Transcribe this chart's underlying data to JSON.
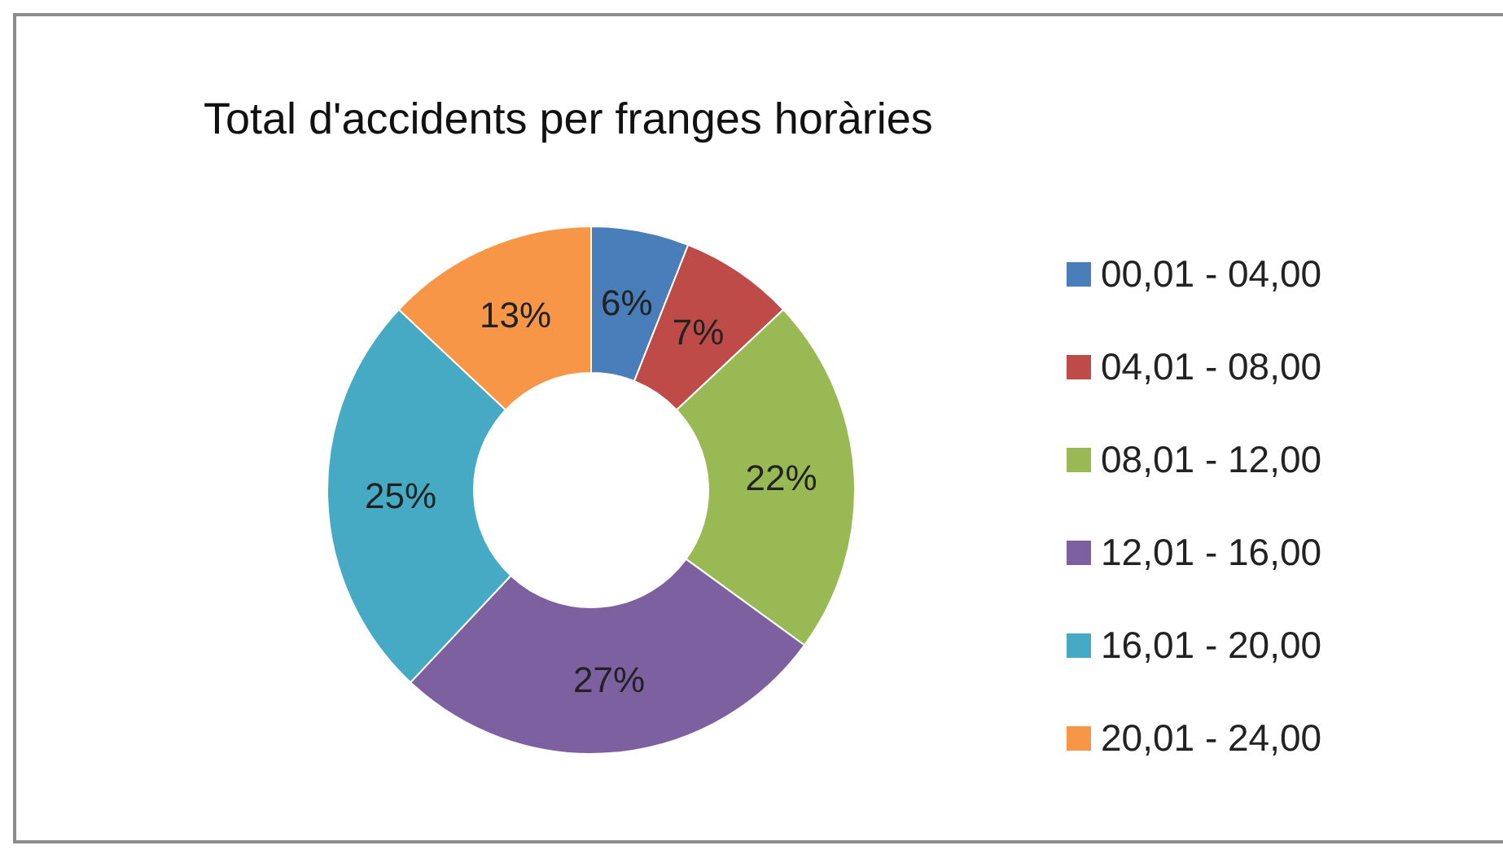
{
  "chart_data": {
    "type": "donut",
    "title": "Total d'accidents per franges horàries",
    "categories": [
      "00,01 - 04,00",
      "04,01 - 08,00",
      "08,01 - 12,00",
      "12,01 - 16,00",
      "16,01 - 20,00",
      "20,01 - 24,00"
    ],
    "values": [
      6,
      7,
      22,
      27,
      25,
      13
    ],
    "value_labels": [
      "6%",
      "7%",
      "22%",
      "27%",
      "25%",
      "13%"
    ],
    "colors": [
      "#4a7ebb",
      "#be4b48",
      "#98b954",
      "#7d60a0",
      "#46aac5",
      "#f79646"
    ],
    "legend": "right"
  }
}
